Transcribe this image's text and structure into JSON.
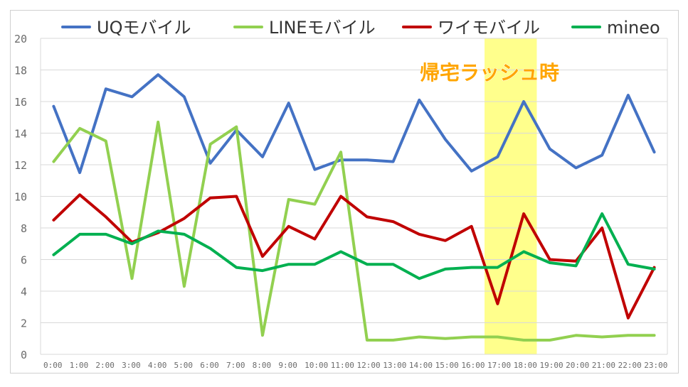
{
  "chart_data": {
    "type": "line",
    "title": "",
    "xlabel": "",
    "ylabel": "",
    "ylim": [
      0,
      20
    ],
    "yticks": [
      0,
      2,
      4,
      6,
      8,
      10,
      12,
      14,
      16,
      18,
      20
    ],
    "grid": true,
    "legend_position": "top",
    "categories": [
      "0:00",
      "1:00",
      "2:00",
      "3:00",
      "4:00",
      "5:00",
      "6:00",
      "7:00",
      "8:00",
      "9:00",
      "10:00",
      "11:00",
      "12:00",
      "13:00",
      "14:00",
      "15:00",
      "16:00",
      "17:00",
      "18:00",
      "19:00",
      "20:00",
      "21:00",
      "22:00",
      "23:00"
    ],
    "series": [
      {
        "name": "UQモバイル",
        "color": "#4472c4",
        "values": [
          15.7,
          11.5,
          16.8,
          16.3,
          17.7,
          16.3,
          12.1,
          14.2,
          12.5,
          15.9,
          11.7,
          12.3,
          12.3,
          12.2,
          16.1,
          13.6,
          11.6,
          12.5,
          16.0,
          13.0,
          11.8,
          12.6,
          16.4,
          12.8
        ]
      },
      {
        "name": "LINEモバイル",
        "color": "#92d050",
        "values": [
          12.2,
          14.3,
          13.5,
          4.8,
          14.7,
          4.3,
          13.3,
          14.4,
          1.2,
          9.8,
          9.5,
          12.8,
          0.9,
          0.9,
          1.1,
          1.0,
          1.1,
          1.1,
          0.9,
          0.9,
          1.2,
          1.1,
          1.2,
          1.2
        ]
      },
      {
        "name": "ワイモバイル",
        "color": "#c00000",
        "values": [
          8.5,
          10.1,
          8.7,
          7.1,
          7.7,
          8.6,
          9.9,
          10.0,
          6.2,
          8.1,
          7.3,
          10.0,
          8.7,
          8.4,
          7.6,
          7.2,
          8.1,
          3.2,
          8.9,
          6.0,
          5.9,
          8.0,
          2.3,
          5.5
        ]
      },
      {
        "name": "mineo",
        "color": "#00b050",
        "values": [
          6.3,
          7.6,
          7.6,
          7.0,
          7.8,
          7.6,
          6.7,
          5.5,
          5.3,
          5.7,
          5.7,
          6.5,
          5.7,
          5.7,
          4.8,
          5.4,
          5.5,
          5.5,
          6.5,
          5.8,
          5.6,
          8.9,
          5.7,
          5.4
        ]
      }
    ],
    "annotation": {
      "text": "帰宅ラッシュ時",
      "from": "17:00",
      "to": "18:00",
      "highlight_color": "#ffff66",
      "text_color": "#ffa500"
    }
  }
}
